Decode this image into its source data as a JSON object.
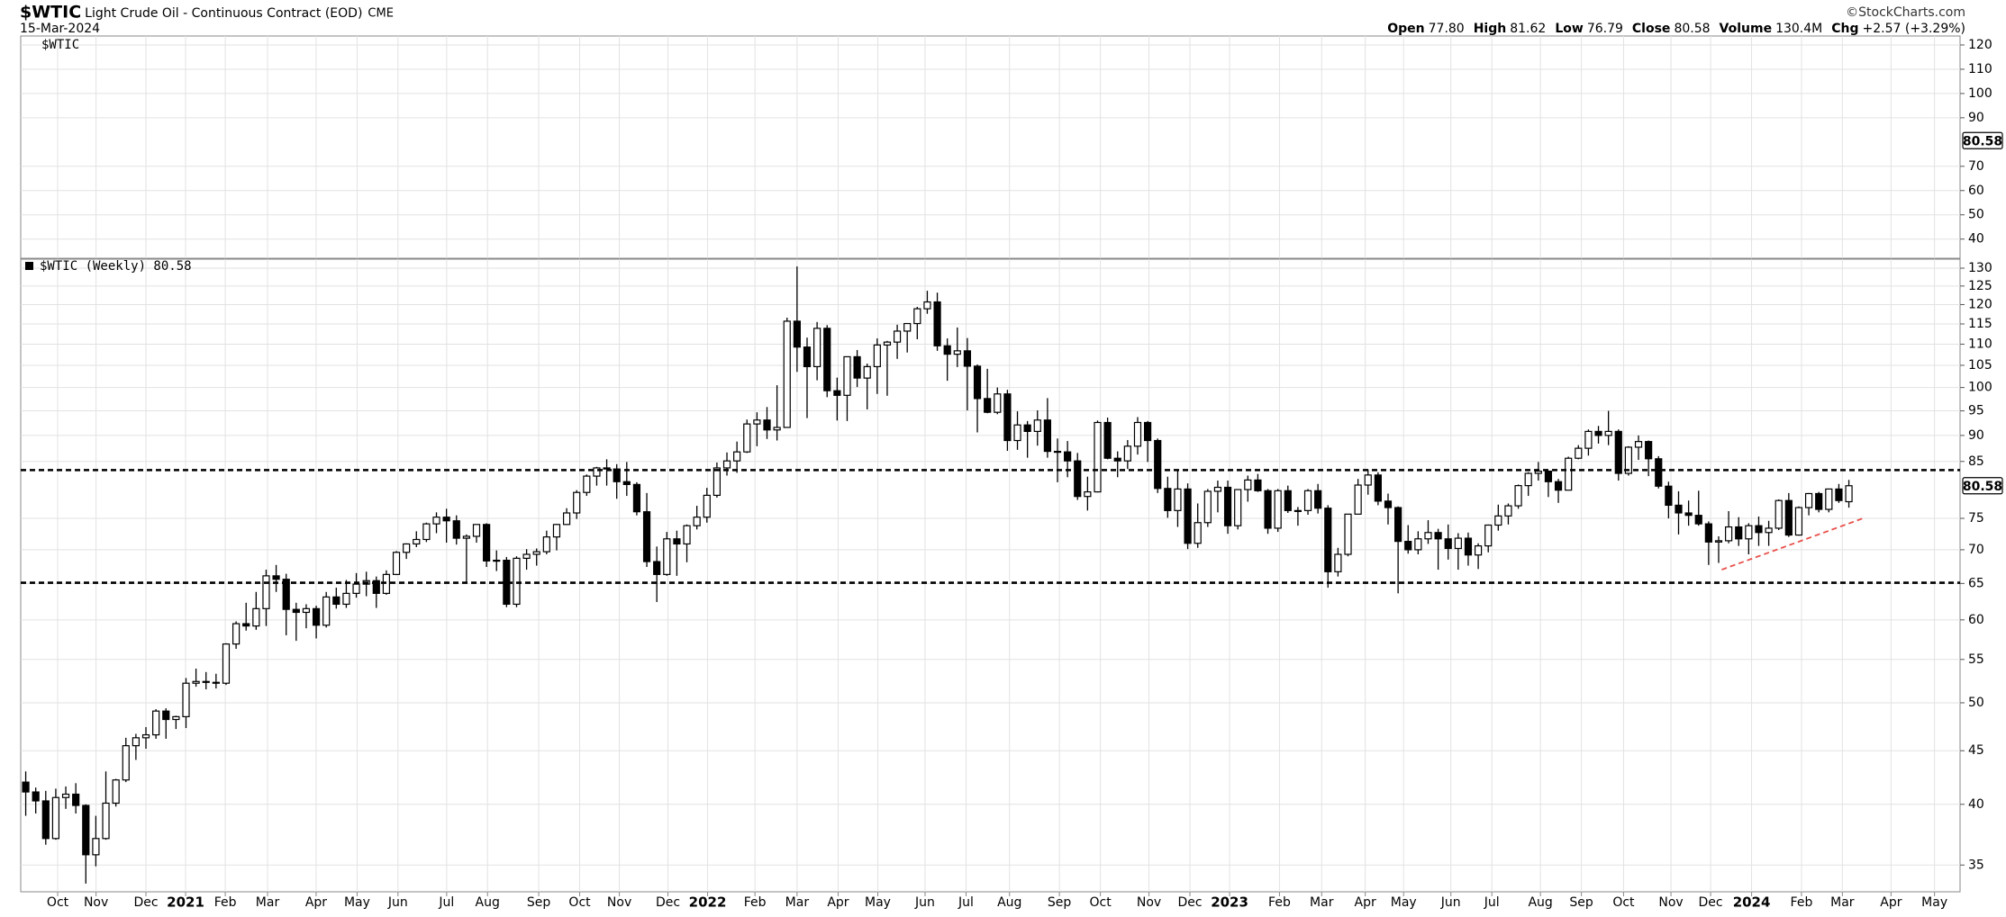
{
  "chart_data": {
    "type": "candlestick",
    "title": "$WTIC",
    "subtitle": "Light Crude Oil - Continuous Contract (EOD)",
    "exchange": "CME",
    "date": "15-Mar-2024",
    "copyright": "©StockCharts.com",
    "stats": [
      {
        "label": "Open",
        "value": "77.80"
      },
      {
        "label": "High",
        "value": "81.62"
      },
      {
        "label": "Low",
        "value": "76.79"
      },
      {
        "label": "Close",
        "value": "80.58"
      },
      {
        "label": "Volume",
        "value": "130.4M"
      },
      {
        "label": "Chg",
        "value": "+2.57 (+3.29%)"
      }
    ],
    "series_label": "$WTIC (Weekly) 80.58",
    "last_price_label": "80.58",
    "color": "#000000",
    "grid": true,
    "log_scale": true,
    "upper_panel": {
      "label": "$WTIC",
      "ylim": [
        32.1,
        123.7
      ],
      "yticks": [
        40,
        50,
        60,
        70,
        90,
        100,
        110,
        120
      ]
    },
    "ylim": [
      33,
      132.6
    ],
    "yticks": [
      35,
      40,
      45,
      50,
      55,
      60,
      65,
      70,
      75,
      85,
      90,
      95,
      100,
      105,
      110,
      115,
      120,
      125,
      130
    ],
    "xlim": [
      -0.5,
      193.1
    ],
    "xticks": [
      {
        "value": 3.19,
        "label": "Oct"
      },
      {
        "value": 7.02,
        "label": "Nov"
      },
      {
        "value": 12.0,
        "label": "Dec"
      },
      {
        "value": 15.96,
        "label": "2021"
      },
      {
        "value": 19.92,
        "label": "Feb"
      },
      {
        "value": 24.14,
        "label": "Mar"
      },
      {
        "value": 28.99,
        "label": "Apr"
      },
      {
        "value": 33.08,
        "label": "May"
      },
      {
        "value": 37.16,
        "label": "Jun"
      },
      {
        "value": 42.02,
        "label": "Jul"
      },
      {
        "value": 46.1,
        "label": "Aug"
      },
      {
        "value": 51.21,
        "label": "Sep"
      },
      {
        "value": 55.3,
        "label": "Oct"
      },
      {
        "value": 59.26,
        "label": "Nov"
      },
      {
        "value": 64.11,
        "label": "Dec"
      },
      {
        "value": 68.07,
        "label": "2022"
      },
      {
        "value": 72.8,
        "label": "Feb"
      },
      {
        "value": 77.0,
        "label": "Mar"
      },
      {
        "value": 81.1,
        "label": "Apr"
      },
      {
        "value": 85.06,
        "label": "May"
      },
      {
        "value": 89.78,
        "label": "Jun"
      },
      {
        "value": 93.87,
        "label": "Jul"
      },
      {
        "value": 98.21,
        "label": "Aug"
      },
      {
        "value": 103.19,
        "label": "Sep"
      },
      {
        "value": 107.28,
        "label": "Oct"
      },
      {
        "value": 112.13,
        "label": "Nov"
      },
      {
        "value": 116.22,
        "label": "Dec"
      },
      {
        "value": 120.18,
        "label": "2023"
      },
      {
        "value": 125.16,
        "label": "Feb"
      },
      {
        "value": 129.37,
        "label": "Mar"
      },
      {
        "value": 133.72,
        "label": "Apr"
      },
      {
        "value": 137.55,
        "label": "May"
      },
      {
        "value": 142.27,
        "label": "Jun"
      },
      {
        "value": 146.36,
        "label": "Jul"
      },
      {
        "value": 151.21,
        "label": "Aug"
      },
      {
        "value": 155.3,
        "label": "Sep"
      },
      {
        "value": 159.51,
        "label": "Oct"
      },
      {
        "value": 164.24,
        "label": "Nov"
      },
      {
        "value": 168.2,
        "label": "Dec"
      },
      {
        "value": 172.29,
        "label": "2024"
      },
      {
        "value": 177.27,
        "label": "Feb"
      },
      {
        "value": 181.35,
        "label": "Mar"
      },
      {
        "value": 186.21,
        "label": "Apr"
      },
      {
        "value": 190.55,
        "label": "May"
      }
    ],
    "categories": [
      null,
      null,
      null,
      null,
      null,
      null,
      null,
      null,
      null,
      null,
      null,
      null,
      null,
      null,
      null,
      null,
      null,
      null,
      null,
      null,
      null,
      null,
      null,
      null,
      null,
      null,
      null,
      null,
      null,
      null,
      null,
      null,
      null,
      null,
      null,
      null,
      null,
      null,
      null,
      null,
      null,
      null,
      null,
      null,
      null,
      null,
      null,
      null,
      null,
      null,
      null,
      null,
      null,
      null,
      null,
      null,
      null,
      null,
      null,
      null,
      null,
      null,
      null,
      null,
      null,
      null,
      null,
      null,
      null,
      null,
      null,
      null,
      null,
      null,
      null,
      null,
      null,
      null,
      null,
      null,
      null,
      null,
      null,
      null,
      null,
      null,
      null,
      null,
      null,
      null,
      null,
      null,
      null,
      null,
      null,
      null,
      null,
      null,
      null,
      null,
      null,
      null,
      null,
      null,
      null,
      null,
      null,
      null,
      null,
      null,
      null,
      null,
      null,
      null,
      null,
      null,
      null,
      null,
      null,
      null,
      null,
      null,
      null,
      null,
      null,
      null,
      null,
      null,
      null,
      null,
      null,
      null,
      null,
      null,
      null,
      null,
      null,
      null,
      null,
      null,
      null,
      null,
      null,
      null,
      null,
      null,
      null,
      null,
      null,
      null,
      null,
      null,
      null,
      null,
      null,
      null,
      null,
      null,
      null,
      null,
      null,
      null,
      null,
      null,
      null,
      null,
      null,
      null,
      null,
      null,
      null,
      null,
      null,
      null,
      null,
      null,
      null,
      null,
      null,
      null,
      null,
      null,
      null
    ],
    "ohlc": [
      [
        42.0,
        43.0,
        39.0,
        41.1
      ],
      [
        41.1,
        41.5,
        39.2,
        40.3
      ],
      [
        40.3,
        41.2,
        36.6,
        37.1
      ],
      [
        37.1,
        41.4,
        37.0,
        40.6
      ],
      [
        40.6,
        41.6,
        39.6,
        40.9
      ],
      [
        40.9,
        41.9,
        39.2,
        39.9
      ],
      [
        39.9,
        40.0,
        33.6,
        35.8
      ],
      [
        35.8,
        39.0,
        34.9,
        37.1
      ],
      [
        37.1,
        43.0,
        37.0,
        40.1
      ],
      [
        40.1,
        42.3,
        39.8,
        42.2
      ],
      [
        42.2,
        46.3,
        42.0,
        45.5
      ],
      [
        45.5,
        46.7,
        44.1,
        46.3
      ],
      [
        46.3,
        47.4,
        45.2,
        46.6
      ],
      [
        46.6,
        49.3,
        46.2,
        49.1
      ],
      [
        49.1,
        49.4,
        46.2,
        48.2
      ],
      [
        48.2,
        48.6,
        47.2,
        48.5
      ],
      [
        48.5,
        52.8,
        47.3,
        52.2
      ],
      [
        52.2,
        53.9,
        51.8,
        52.4
      ],
      [
        52.4,
        53.5,
        51.5,
        52.3
      ],
      [
        52.3,
        53.3,
        51.6,
        52.2
      ],
      [
        52.2,
        57.0,
        52.0,
        56.9
      ],
      [
        56.9,
        59.8,
        56.3,
        59.5
      ],
      [
        59.5,
        62.3,
        58.6,
        59.2
      ],
      [
        59.2,
        63.8,
        58.7,
        61.5
      ],
      [
        61.5,
        67.0,
        59.2,
        66.1
      ],
      [
        66.1,
        67.7,
        63.8,
        65.6
      ],
      [
        65.6,
        66.4,
        58.0,
        61.4
      ],
      [
        61.4,
        62.3,
        57.3,
        61.0
      ],
      [
        61.0,
        62.1,
        58.9,
        61.5
      ],
      [
        61.5,
        61.9,
        57.6,
        59.3
      ],
      [
        59.3,
        63.8,
        59.0,
        63.1
      ],
      [
        63.1,
        64.4,
        61.5,
        62.1
      ],
      [
        62.1,
        65.5,
        61.6,
        63.6
      ],
      [
        63.6,
        66.5,
        63.0,
        64.9
      ],
      [
        64.9,
        66.7,
        63.2,
        65.4
      ],
      [
        65.4,
        66.0,
        61.6,
        63.6
      ],
      [
        63.6,
        66.9,
        63.4,
        66.3
      ],
      [
        66.3,
        69.8,
        66.2,
        69.6
      ],
      [
        69.6,
        71.0,
        68.6,
        70.9
      ],
      [
        70.9,
        72.9,
        70.4,
        71.6
      ],
      [
        71.6,
        74.3,
        71.2,
        74.1
      ],
      [
        74.1,
        76.0,
        72.6,
        75.2
      ],
      [
        75.2,
        76.6,
        71.1,
        74.6
      ],
      [
        74.6,
        75.5,
        70.8,
        71.8
      ],
      [
        71.8,
        72.4,
        65.0,
        72.1
      ],
      [
        72.1,
        74.0,
        71.1,
        74.0
      ],
      [
        74.0,
        74.2,
        67.4,
        68.3
      ],
      [
        68.3,
        69.9,
        66.8,
        68.4
      ],
      [
        68.4,
        68.9,
        61.7,
        62.1
      ],
      [
        62.1,
        69.0,
        61.7,
        68.7
      ],
      [
        68.7,
        70.1,
        67.0,
        69.3
      ],
      [
        69.3,
        70.2,
        67.6,
        69.7
      ],
      [
        69.7,
        73.0,
        69.3,
        72.0
      ],
      [
        72.0,
        74.1,
        69.9,
        74.0
      ],
      [
        74.0,
        76.7,
        73.9,
        75.9
      ],
      [
        75.9,
        79.8,
        74.9,
        79.4
      ],
      [
        79.4,
        82.6,
        78.8,
        82.3
      ],
      [
        82.3,
        84.0,
        80.6,
        83.8
      ],
      [
        83.8,
        85.4,
        80.6,
        83.6
      ],
      [
        83.6,
        84.5,
        78.3,
        81.3
      ],
      [
        81.3,
        84.9,
        78.8,
        80.8
      ],
      [
        80.8,
        81.2,
        75.5,
        76.1
      ],
      [
        76.1,
        79.3,
        67.4,
        68.2
      ],
      [
        68.2,
        70.5,
        62.4,
        66.3
      ],
      [
        66.3,
        72.8,
        66.1,
        71.7
      ],
      [
        71.7,
        73.0,
        66.1,
        70.9
      ],
      [
        70.9,
        74.0,
        68.1,
        73.8
      ],
      [
        73.8,
        77.1,
        73.2,
        75.2
      ],
      [
        75.2,
        80.2,
        74.3,
        78.9
      ],
      [
        78.9,
        84.8,
        78.5,
        83.8
      ],
      [
        83.8,
        86.7,
        82.4,
        85.1
      ],
      [
        85.1,
        88.8,
        82.9,
        86.8
      ],
      [
        86.8,
        93.2,
        86.6,
        92.3
      ],
      [
        92.3,
        94.7,
        87.9,
        93.1
      ],
      [
        93.1,
        95.8,
        89.3,
        91.1
      ],
      [
        91.1,
        100.5,
        89.0,
        91.6
      ],
      [
        91.6,
        116.6,
        91.6,
        115.7
      ],
      [
        115.7,
        130.5,
        103.5,
        109.3
      ],
      [
        109.3,
        111.6,
        93.5,
        104.7
      ],
      [
        104.7,
        115.5,
        101.6,
        113.9
      ],
      [
        113.9,
        114.7,
        97.9,
        99.3
      ],
      [
        99.3,
        102.2,
        93.0,
        98.3
      ],
      [
        98.3,
        107.0,
        92.9,
        107.0
      ],
      [
        107.0,
        108.6,
        100.1,
        102.1
      ],
      [
        102.1,
        105.4,
        95.3,
        104.7
      ],
      [
        104.7,
        111.4,
        98.6,
        109.8
      ],
      [
        109.8,
        110.8,
        98.2,
        110.5
      ],
      [
        110.5,
        114.8,
        106.5,
        113.2
      ],
      [
        113.2,
        115.2,
        108.0,
        115.1
      ],
      [
        115.1,
        119.4,
        111.2,
        118.9
      ],
      [
        118.9,
        123.7,
        117.6,
        120.7
      ],
      [
        120.7,
        123.2,
        108.4,
        109.6
      ],
      [
        109.6,
        111.4,
        101.5,
        107.6
      ],
      [
        107.6,
        114.1,
        104.6,
        108.4
      ],
      [
        108.4,
        111.5,
        95.1,
        104.8
      ],
      [
        104.8,
        105.2,
        90.6,
        97.6
      ],
      [
        97.6,
        104.2,
        94.5,
        94.7
      ],
      [
        94.7,
        100.0,
        94.3,
        98.6
      ],
      [
        98.6,
        99.5,
        87.0,
        89.0
      ],
      [
        89.0,
        94.9,
        87.2,
        92.1
      ],
      [
        92.1,
        92.9,
        85.7,
        90.8
      ],
      [
        90.8,
        95.1,
        88.0,
        93.1
      ],
      [
        93.1,
        97.7,
        85.7,
        86.9
      ],
      [
        86.9,
        89.4,
        81.2,
        86.8
      ],
      [
        86.8,
        88.9,
        82.1,
        85.1
      ],
      [
        85.1,
        86.6,
        78.1,
        78.7
      ],
      [
        78.7,
        82.2,
        76.3,
        79.5
      ],
      [
        79.5,
        93.0,
        79.4,
        92.6
      ],
      [
        92.6,
        93.6,
        85.4,
        85.6
      ],
      [
        85.6,
        86.9,
        82.1,
        85.1
      ],
      [
        85.1,
        89.1,
        83.6,
        87.9
      ],
      [
        87.9,
        93.7,
        86.3,
        92.6
      ],
      [
        92.6,
        92.9,
        84.9,
        89.0
      ],
      [
        89.0,
        89.4,
        79.3,
        80.1
      ],
      [
        80.1,
        82.2,
        75.1,
        76.3
      ],
      [
        76.3,
        83.3,
        73.6,
        80.0
      ],
      [
        80.0,
        81.0,
        70.1,
        71.0
      ],
      [
        71.0,
        77.5,
        70.3,
        74.3
      ],
      [
        74.3,
        80.0,
        73.6,
        79.6
      ],
      [
        79.6,
        81.5,
        76.0,
        80.3
      ],
      [
        80.3,
        81.5,
        72.5,
        73.8
      ],
      [
        73.8,
        80.0,
        73.2,
        79.9
      ],
      [
        79.9,
        82.4,
        77.8,
        81.6
      ],
      [
        81.6,
        82.7,
        79.5,
        79.7
      ],
      [
        79.7,
        80.0,
        72.5,
        73.4
      ],
      [
        73.4,
        80.0,
        72.8,
        79.7
      ],
      [
        79.7,
        80.6,
        75.9,
        76.3
      ],
      [
        76.3,
        76.9,
        73.8,
        76.3
      ],
      [
        76.3,
        80.0,
        75.6,
        79.7
      ],
      [
        79.7,
        80.9,
        75.8,
        76.7
      ],
      [
        76.7,
        77.2,
        64.4,
        66.7
      ],
      [
        66.7,
        70.3,
        66.0,
        69.3
      ],
      [
        69.3,
        75.7,
        69.0,
        75.7
      ],
      [
        75.7,
        81.8,
        75.7,
        80.7
      ],
      [
        80.7,
        83.5,
        79.0,
        82.5
      ],
      [
        82.5,
        83.0,
        77.2,
        77.9
      ],
      [
        77.9,
        79.2,
        74.0,
        76.8
      ],
      [
        76.8,
        77.0,
        63.6,
        71.3
      ],
      [
        71.3,
        73.9,
        69.4,
        70.0
      ],
      [
        70.0,
        72.9,
        69.3,
        71.7
      ],
      [
        71.7,
        74.7,
        70.9,
        72.7
      ],
      [
        72.7,
        73.3,
        67.0,
        71.7
      ],
      [
        71.7,
        74.0,
        68.5,
        70.2
      ],
      [
        70.2,
        72.6,
        67.0,
        71.8
      ],
      [
        71.8,
        72.7,
        67.6,
        69.2
      ],
      [
        69.2,
        71.0,
        67.1,
        70.6
      ],
      [
        70.6,
        74.0,
        69.6,
        73.9
      ],
      [
        73.9,
        77.3,
        73.0,
        75.4
      ],
      [
        75.4,
        77.5,
        74.0,
        77.1
      ],
      [
        77.1,
        80.8,
        76.6,
        80.6
      ],
      [
        80.6,
        83.0,
        78.8,
        82.8
      ],
      [
        82.8,
        84.9,
        81.5,
        83.2
      ],
      [
        83.2,
        83.3,
        78.6,
        81.3
      ],
      [
        81.3,
        81.8,
        77.6,
        79.8
      ],
      [
        79.8,
        85.9,
        79.8,
        85.6
      ],
      [
        85.6,
        88.1,
        85.4,
        87.5
      ],
      [
        87.5,
        91.2,
        86.1,
        90.8
      ],
      [
        90.8,
        91.9,
        88.4,
        90.0
      ],
      [
        90.0,
        95.0,
        88.1,
        90.8
      ],
      [
        90.8,
        91.2,
        81.5,
        82.8
      ],
      [
        82.8,
        87.9,
        82.4,
        87.7
      ],
      [
        87.7,
        90.0,
        85.3,
        88.8
      ],
      [
        88.8,
        89.0,
        82.3,
        85.5
      ],
      [
        85.5,
        86.0,
        80.1,
        80.5
      ],
      [
        80.5,
        81.3,
        75.0,
        77.2
      ],
      [
        77.2,
        79.6,
        72.4,
        75.9
      ],
      [
        75.9,
        78.0,
        73.8,
        75.5
      ],
      [
        75.5,
        79.7,
        73.8,
        74.1
      ],
      [
        74.1,
        74.5,
        67.7,
        71.2
      ],
      [
        71.2,
        72.1,
        68.0,
        71.4
      ],
      [
        71.4,
        76.2,
        71.0,
        73.6
      ],
      [
        73.6,
        75.2,
        70.6,
        71.7
      ],
      [
        71.7,
        74.2,
        69.3,
        73.8
      ],
      [
        73.8,
        75.3,
        70.6,
        72.7
      ],
      [
        72.7,
        74.6,
        70.6,
        73.4
      ],
      [
        73.4,
        78.2,
        73.1,
        78.0
      ],
      [
        78.0,
        79.3,
        72.0,
        72.3
      ],
      [
        72.3,
        77.0,
        72.2,
        76.8
      ],
      [
        76.8,
        79.3,
        75.5,
        79.2
      ],
      [
        79.2,
        79.5,
        76.0,
        76.5
      ],
      [
        76.5,
        80.0,
        76.0,
        80.0
      ],
      [
        80.0,
        80.9,
        77.6,
        78.0
      ],
      [
        77.8,
        81.62,
        76.79,
        80.58
      ]
    ],
    "levels": [
      {
        "y": 83.4,
        "color": "#000000"
      },
      {
        "y": 65.1,
        "color": "#000000"
      }
    ],
    "trendline": {
      "x": [
        169.3,
        183.4
      ],
      "y": [
        67.0,
        75.0
      ],
      "color": "#e8504a"
    }
  }
}
